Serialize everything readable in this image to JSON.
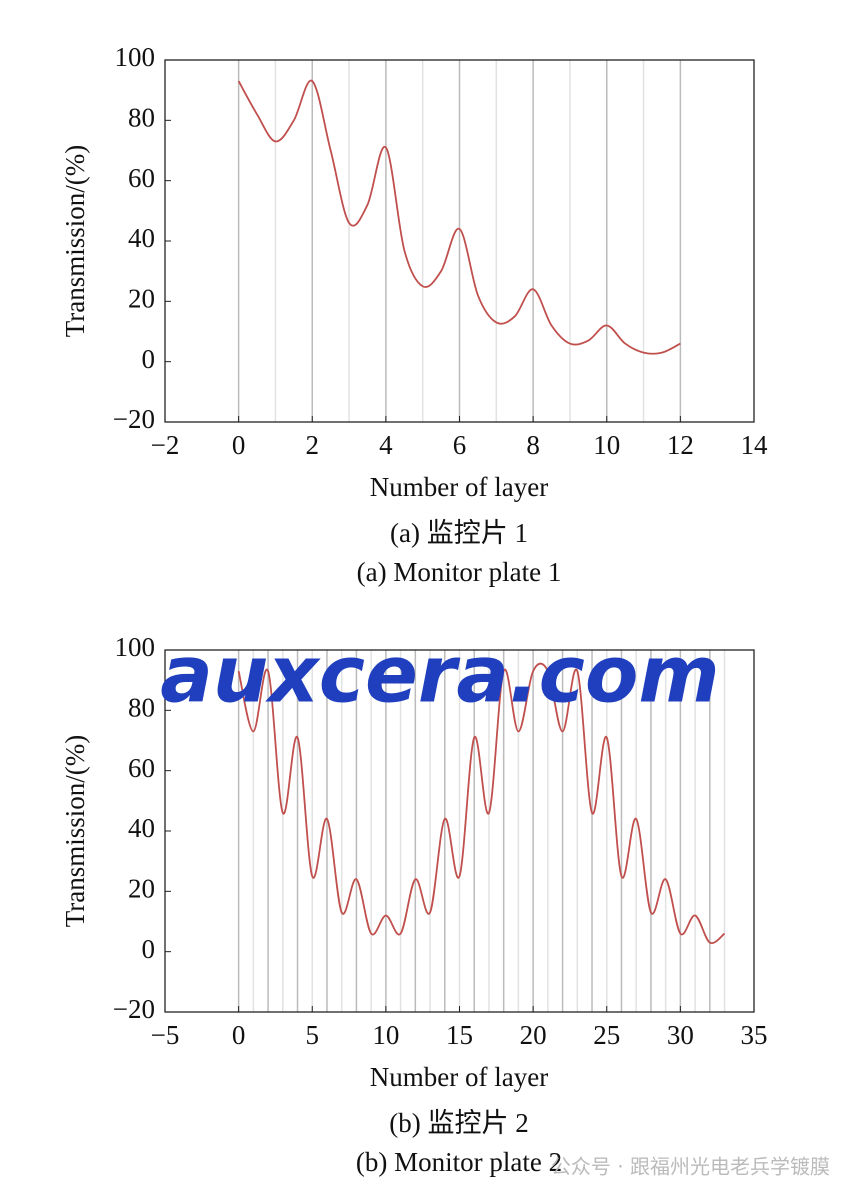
{
  "chart_data": [
    {
      "type": "line",
      "xlabel": "Number of layer",
      "ylabel": "Transmission/(%)",
      "caption": "(a) 监控片 1",
      "caption_en": "(a) Monitor plate 1",
      "x": [
        0,
        0.5,
        1,
        1.5,
        2,
        2.5,
        3,
        3.5,
        4,
        4.5,
        5,
        5.5,
        6,
        6.5,
        7,
        7.5,
        8,
        8.5,
        9,
        9.5,
        10,
        10.5,
        11,
        11.5,
        12
      ],
      "values": [
        93,
        82,
        73,
        80,
        93,
        70,
        46,
        52,
        71,
        37,
        25,
        30,
        44,
        22,
        13,
        15,
        24,
        12,
        6,
        7,
        12,
        6,
        3,
        3,
        6
      ],
      "color": "#c0504d",
      "grid": true,
      "xlim": [
        -2,
        14
      ],
      "xticks": [
        {
          "value": -2,
          "label": "−2"
        },
        0,
        2,
        4,
        6,
        8,
        10,
        12,
        14
      ],
      "ylim": [
        -20,
        100
      ],
      "yticks": [
        {
          "value": -20,
          "label": "−20"
        },
        0,
        20,
        40,
        60,
        80,
        100
      ]
    },
    {
      "type": "line",
      "xlabel": "Number of layer",
      "ylabel": "Transmission/(%)",
      "caption": "(b) 监控片 2",
      "caption_en": "(b) Monitor plate 2",
      "x": [
        0,
        1,
        2,
        3,
        4,
        5,
        6,
        7,
        8,
        9,
        10,
        11,
        12,
        13,
        14,
        15,
        16,
        17,
        18,
        19,
        20,
        21,
        22,
        23,
        24,
        25,
        26,
        27,
        28,
        29,
        30,
        31,
        32,
        33
      ],
      "values": [
        93,
        73,
        93,
        46,
        71,
        25,
        44,
        13,
        24,
        6,
        12,
        6,
        24,
        13,
        44,
        25,
        71,
        46,
        93,
        73,
        93,
        93,
        73,
        93,
        46,
        71,
        25,
        44,
        13,
        24,
        6,
        12,
        3,
        6
      ],
      "color": "#c0504d",
      "grid": true,
      "xlim": [
        -5,
        35
      ],
      "xticks": [
        {
          "value": -5,
          "label": "−5"
        },
        0,
        5,
        10,
        15,
        20,
        25,
        30,
        35
      ],
      "ylim": [
        -20,
        100
      ],
      "yticks": [
        {
          "value": -20,
          "label": "−20"
        },
        0,
        20,
        40,
        60,
        80,
        100
      ]
    }
  ],
  "watermarks": [
    "auxcera.com",
    "公众号 · 跟福州光电老兵学镀膜"
  ]
}
